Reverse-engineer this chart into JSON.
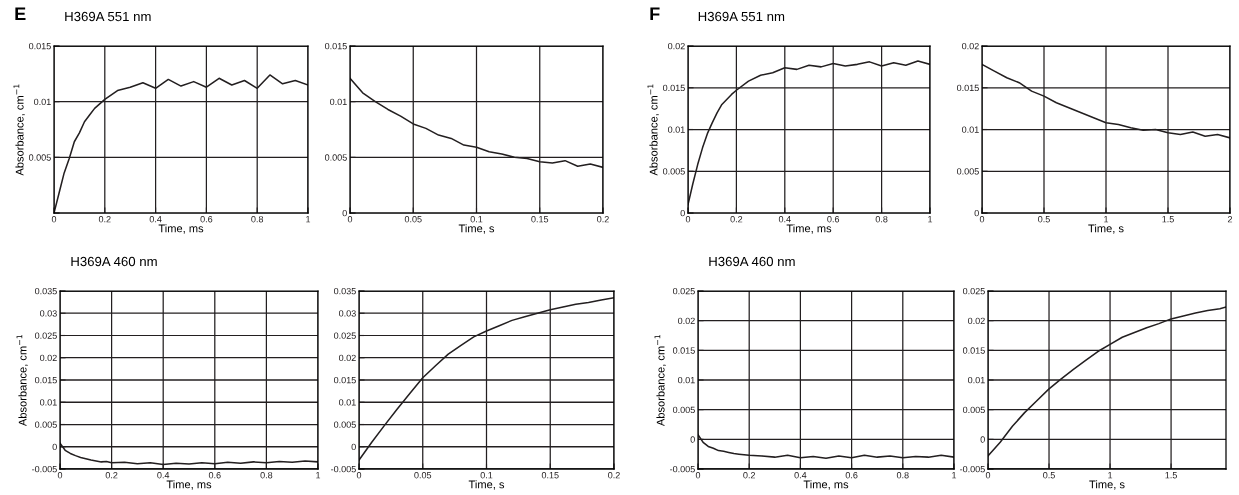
{
  "chart_data": [
    {
      "type": "line",
      "title": "H369A 551 nm",
      "annotations": [
        "E"
      ],
      "xlabel": "Time, ms",
      "ylabel": "Absorbance, cm$^{−1}$",
      "grid": true,
      "xlim": [
        0,
        1
      ],
      "ylim": [
        0,
        0.015
      ],
      "xticks": [
        0,
        0.2,
        0.4,
        0.6,
        0.8,
        1
      ],
      "yticks": [
        {
          "value": 0,
          "label": null
        },
        0.005,
        0.01,
        0.015
      ],
      "series": [
        {
          "color": "#231f20",
          "x": [
            0,
            0.02,
            0.04,
            0.06,
            0.08,
            0.1,
            0.12,
            0.14,
            0.16,
            0.18,
            0.2,
            0.25,
            0.3,
            0.35,
            0.4,
            0.45,
            0.5,
            0.55,
            0.6,
            0.65,
            0.7,
            0.75,
            0.8,
            0.85,
            0.9,
            0.95,
            1
          ],
          "values": [
            0,
            0.0018,
            0.0036,
            0.0049,
            0.0064,
            0.0072,
            0.0082,
            0.0088,
            0.0094,
            0.0098,
            0.0102,
            0.011,
            0.0113,
            0.0117,
            0.0112,
            0.012,
            0.0114,
            0.0118,
            0.0113,
            0.0121,
            0.0115,
            0.0119,
            0.0112,
            0.0124,
            0.0116,
            0.0119,
            0.0115
          ]
        }
      ]
    },
    {
      "type": "line",
      "xlabel": "Time, s",
      "grid": true,
      "xlim": [
        0,
        0.2
      ],
      "ylim": [
        0,
        0.015
      ],
      "xticks": [
        0,
        0.05,
        0.1,
        0.15,
        0.2
      ],
      "yticks": [
        0,
        0.005,
        0.01,
        0.015
      ],
      "series": [
        {
          "color": "#231f20",
          "x": [
            0,
            0.01,
            0.02,
            0.03,
            0.04,
            0.05,
            0.06,
            0.07,
            0.08,
            0.09,
            0.1,
            0.11,
            0.12,
            0.13,
            0.14,
            0.15,
            0.16,
            0.17,
            0.18,
            0.19,
            0.2
          ],
          "values": [
            0.0121,
            0.0108,
            0.01,
            0.0093,
            0.0087,
            0.008,
            0.0076,
            0.007,
            0.0067,
            0.0061,
            0.0059,
            0.0055,
            0.0053,
            0.005,
            0.0049,
            0.0046,
            0.0045,
            0.0047,
            0.0042,
            0.0044,
            0.0041
          ]
        }
      ]
    },
    {
      "type": "line",
      "title": "H369A 551 nm",
      "annotations": [
        "F"
      ],
      "xlabel": "Time, ms",
      "ylabel": "Absorbance, cm$^{−1}$",
      "grid": true,
      "xlim": [
        0,
        1
      ],
      "ylim": [
        0,
        0.02
      ],
      "xticks": [
        0,
        0.2,
        0.4,
        0.6,
        0.8,
        1
      ],
      "yticks": [
        0,
        0.005,
        0.01,
        0.015,
        0.02
      ],
      "series": [
        {
          "color": "#231f20",
          "x": [
            0,
            0.02,
            0.04,
            0.06,
            0.08,
            0.1,
            0.12,
            0.14,
            0.16,
            0.18,
            0.2,
            0.25,
            0.3,
            0.35,
            0.4,
            0.45,
            0.5,
            0.55,
            0.6,
            0.65,
            0.7,
            0.75,
            0.8,
            0.85,
            0.9,
            0.95,
            1
          ],
          "values": [
            0.001,
            0.0035,
            0.0058,
            0.0078,
            0.0095,
            0.0108,
            0.012,
            0.013,
            0.0136,
            0.0142,
            0.0147,
            0.0158,
            0.0165,
            0.0168,
            0.0174,
            0.0172,
            0.0177,
            0.0175,
            0.0179,
            0.0176,
            0.0178,
            0.0181,
            0.0176,
            0.018,
            0.0177,
            0.0182,
            0.0178
          ]
        }
      ]
    },
    {
      "type": "line",
      "xlabel": "Time, s",
      "grid": true,
      "xlim": [
        0,
        2
      ],
      "ylim": [
        0,
        0.02
      ],
      "xticks": [
        0,
        0.5,
        1,
        1.5,
        2
      ],
      "yticks": [
        0,
        0.005,
        0.01,
        0.015,
        0.02
      ],
      "series": [
        {
          "color": "#231f20",
          "x": [
            0,
            0.1,
            0.2,
            0.3,
            0.4,
            0.5,
            0.6,
            0.7,
            0.8,
            0.9,
            1,
            1.1,
            1.2,
            1.3,
            1.4,
            1.5,
            1.6,
            1.7,
            1.8,
            1.9,
            2
          ],
          "values": [
            0.0178,
            0.017,
            0.0162,
            0.0156,
            0.0146,
            0.014,
            0.0132,
            0.0126,
            0.012,
            0.0114,
            0.0108,
            0.0106,
            0.0102,
            0.0099,
            0.01,
            0.0096,
            0.0094,
            0.0097,
            0.0092,
            0.0094,
            0.009
          ]
        }
      ]
    },
    {
      "type": "line",
      "title": "H369A 460 nm",
      "xlabel": "Time, ms",
      "ylabel": "Absorbance, cm$^{−1}$",
      "grid": true,
      "xlim": [
        0,
        1
      ],
      "ylim": [
        -0.005,
        0.035
      ],
      "xticks": [
        0,
        0.2,
        0.4,
        0.6,
        0.8,
        1
      ],
      "yticks": [
        -0.005,
        0,
        0.005,
        0.01,
        0.015,
        0.02,
        0.025,
        0.03,
        0.035
      ],
      "series": [
        {
          "color": "#231f20",
          "x": [
            0,
            0.02,
            0.04,
            0.06,
            0.08,
            0.1,
            0.12,
            0.14,
            0.16,
            0.18,
            0.2,
            0.25,
            0.3,
            0.35,
            0.4,
            0.45,
            0.5,
            0.55,
            0.6,
            0.65,
            0.7,
            0.75,
            0.8,
            0.85,
            0.9,
            0.95,
            1
          ],
          "values": [
            0.0008,
            -0.0008,
            -0.0015,
            -0.002,
            -0.0024,
            -0.0027,
            -0.003,
            -0.0032,
            -0.0034,
            -0.0033,
            -0.0036,
            -0.0035,
            -0.0038,
            -0.0036,
            -0.004,
            -0.0037,
            -0.0039,
            -0.0036,
            -0.0038,
            -0.0035,
            -0.0037,
            -0.0034,
            -0.0036,
            -0.0033,
            -0.0035,
            -0.0032,
            -0.0034
          ]
        }
      ]
    },
    {
      "type": "line",
      "xlabel": "Time, s",
      "grid": true,
      "xlim": [
        0,
        0.2
      ],
      "ylim": [
        -0.005,
        0.035
      ],
      "xticks": [
        0,
        0.05,
        0.1,
        0.15,
        0.2
      ],
      "yticks": [
        -0.005,
        0,
        0.005,
        0.01,
        0.015,
        0.02,
        0.025,
        0.03,
        0.035
      ],
      "series": [
        {
          "color": "#231f20",
          "x": [
            0,
            0.01,
            0.02,
            0.03,
            0.04,
            0.05,
            0.06,
            0.07,
            0.08,
            0.09,
            0.1,
            0.11,
            0.12,
            0.13,
            0.14,
            0.15,
            0.16,
            0.17,
            0.18,
            0.19,
            0.2
          ],
          "values": [
            -0.003,
            0.001,
            0.0048,
            0.0085,
            0.012,
            0.0155,
            0.0182,
            0.0208,
            0.0228,
            0.0247,
            0.026,
            0.0272,
            0.0284,
            0.0292,
            0.03,
            0.0308,
            0.0314,
            0.032,
            0.0324,
            0.033,
            0.0335
          ]
        }
      ]
    },
    {
      "type": "line",
      "title": "H369A 460 nm",
      "xlabel": "Time, ms",
      "ylabel": "Absorbance, cm$^{−1}$",
      "grid": true,
      "xlim": [
        0,
        1
      ],
      "ylim": [
        -0.005,
        0.025
      ],
      "xticks": [
        0,
        0.2,
        0.4,
        0.6,
        0.8,
        1
      ],
      "yticks": [
        -0.005,
        0,
        0.005,
        0.01,
        0.015,
        0.02,
        0.025
      ],
      "series": [
        {
          "color": "#231f20",
          "x": [
            0,
            0.02,
            0.04,
            0.06,
            0.08,
            0.1,
            0.12,
            0.14,
            0.16,
            0.18,
            0.2,
            0.25,
            0.3,
            0.35,
            0.4,
            0.45,
            0.5,
            0.55,
            0.6,
            0.65,
            0.7,
            0.75,
            0.8,
            0.85,
            0.9,
            0.95,
            1
          ],
          "values": [
            0.0008,
            -0.0005,
            -0.0012,
            -0.0015,
            -0.0019,
            -0.002,
            -0.0022,
            -0.0024,
            -0.0025,
            -0.0026,
            -0.0027,
            -0.0028,
            -0.003,
            -0.0027,
            -0.0031,
            -0.0029,
            -0.0032,
            -0.0028,
            -0.0031,
            -0.0027,
            -0.003,
            -0.0028,
            -0.0031,
            -0.0029,
            -0.003,
            -0.0027,
            -0.003
          ]
        }
      ]
    },
    {
      "type": "line",
      "xlabel": "Time, s",
      "grid": true,
      "xlim": [
        0,
        1.95
      ],
      "ylim": [
        -0.005,
        0.025
      ],
      "xticks": [
        0,
        0.5,
        1,
        1.5
      ],
      "yticks": [
        -0.005,
        0,
        0.005,
        0.01,
        0.015,
        0.02,
        0.025
      ],
      "series": [
        {
          "color": "#231f20",
          "x": [
            0,
            0.1,
            0.2,
            0.3,
            0.4,
            0.5,
            0.6,
            0.7,
            0.8,
            0.9,
            1,
            1.1,
            1.2,
            1.3,
            1.4,
            1.5,
            1.6,
            1.7,
            1.8,
            1.9,
            1.95
          ],
          "values": [
            -0.0028,
            -0.0005,
            0.0022,
            0.0045,
            0.0065,
            0.0085,
            0.0102,
            0.0118,
            0.0133,
            0.0148,
            0.016,
            0.0172,
            0.018,
            0.0188,
            0.0195,
            0.0203,
            0.0208,
            0.0213,
            0.0217,
            0.022,
            0.0223
          ]
        }
      ]
    }
  ]
}
